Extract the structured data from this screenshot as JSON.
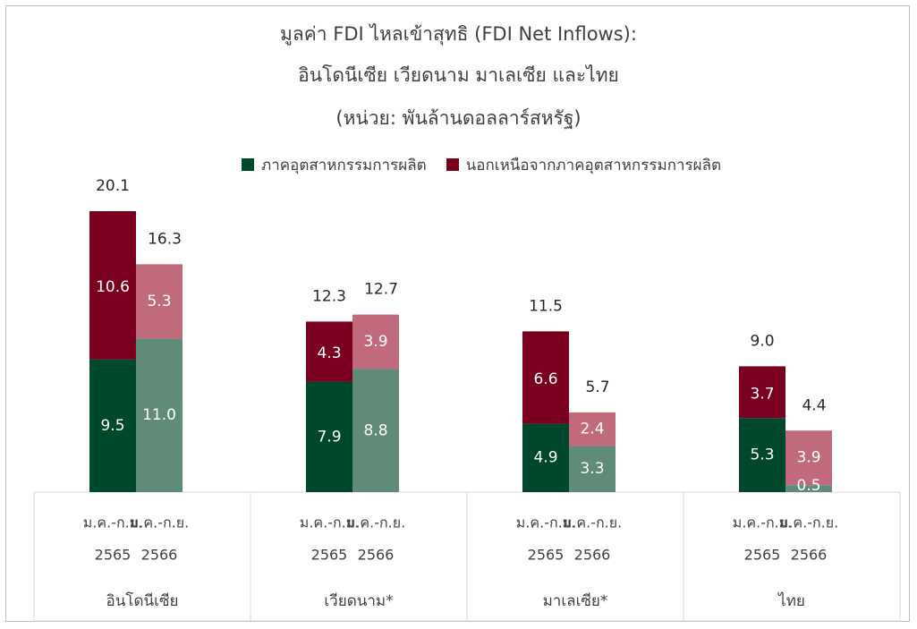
{
  "chart_data": {
    "type": "bar",
    "stacked": true,
    "title_lines": [
      "มูลค่า FDI ไหลเข้าสุทธิ (FDI Net Inflows):",
      "อินโดนีเซีย เวียดนาม มาเลเซีย และไทย",
      "(หน่วย: พันล้านดอลลาร์สหรัฐ)"
    ],
    "legend": [
      {
        "name": "ภาคอุตสาหกรรมการผลิต",
        "color": "#00482b"
      },
      {
        "name": "นอกเหนือจากภาคอุตสาหกรรมการผลิต",
        "color": "#7b0020"
      }
    ],
    "period_lines": [
      "ม.ค.-ก.ย.",
      "2565",
      "2566"
    ],
    "groups": [
      {
        "name": "อินโดนีเซีย",
        "bars": [
          {
            "period": "2565",
            "manufacturing": 9.5,
            "non_manufacturing": 10.6,
            "total": 20.1
          },
          {
            "period": "2566",
            "manufacturing": 11.0,
            "non_manufacturing": 5.3,
            "total": 16.3
          }
        ]
      },
      {
        "name": "เวียดนาม*",
        "bars": [
          {
            "period": "2565",
            "manufacturing": 7.9,
            "non_manufacturing": 4.3,
            "total": 12.3
          },
          {
            "period": "2566",
            "manufacturing": 8.8,
            "non_manufacturing": 3.9,
            "total": 12.7
          }
        ]
      },
      {
        "name": "มาเลเซีย*",
        "bars": [
          {
            "period": "2565",
            "manufacturing": 4.9,
            "non_manufacturing": 6.6,
            "total": 11.5
          },
          {
            "period": "2566",
            "manufacturing": 3.3,
            "non_manufacturing": 2.4,
            "total": 5.7
          }
        ]
      },
      {
        "name": "ไทย",
        "bars": [
          {
            "period": "2565",
            "manufacturing": 5.3,
            "non_manufacturing": 3.7,
            "total": 9.0
          },
          {
            "period": "2566",
            "manufacturing": 0.5,
            "non_manufacturing": 3.9,
            "total": 4.4
          }
        ]
      }
    ],
    "colors": {
      "manufacturing_2565": "#00482b",
      "non_manufacturing_2565": "#7b0020",
      "manufacturing_2566": "#5f8b78",
      "non_manufacturing_2566": "#c06a7c"
    },
    "ylim": [
      0,
      20.1
    ],
    "grid": false,
    "legend_position": "top"
  }
}
